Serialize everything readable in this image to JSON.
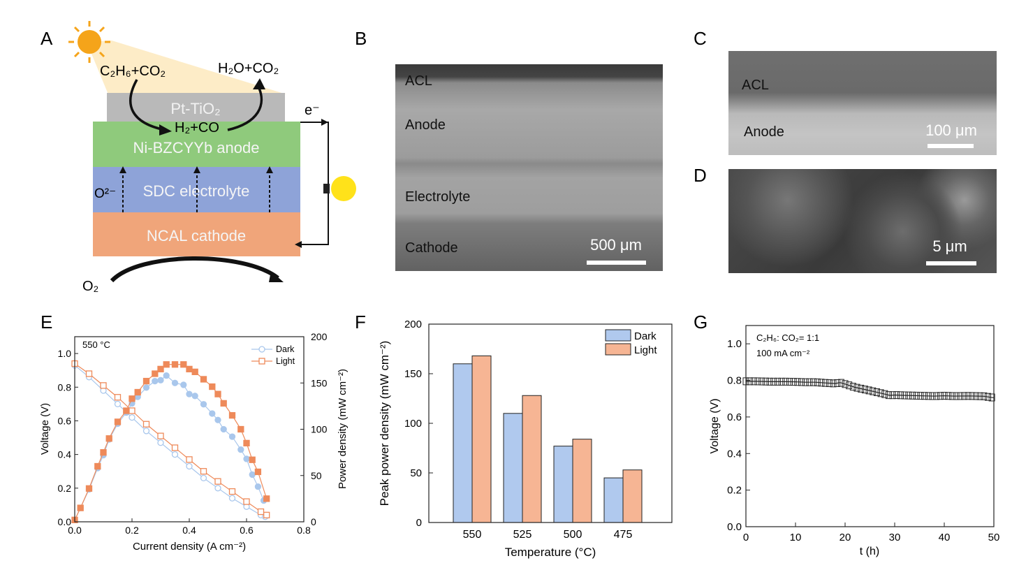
{
  "panels": {
    "A": {
      "letter": "A",
      "feed": "C₂H₆+CO₂",
      "product": "H₂O+CO₂",
      "intermediate": "H₂+CO",
      "catalyst_layer": "Pt-TiO₂",
      "anode": "Ni-BZCYYb anode",
      "electrolyte": "SDC electrolyte",
      "cathode": "NCAL cathode",
      "ion": "O²⁻",
      "electron": "e⁻",
      "oxygen": "O₂",
      "colors": {
        "catalyst": "#b9b9b9",
        "anode": "#8fca7c",
        "electrolyte": "#8ea3d8",
        "cathode": "#f0a57a",
        "sun": "#f5a41a",
        "bulb": "#ffe21a",
        "beam": "#fde9bd"
      }
    },
    "B": {
      "letter": "B",
      "labels": [
        "ACL",
        "Anode",
        "Electrolyte",
        "Cathode"
      ],
      "scale": "500 μm"
    },
    "C": {
      "letter": "C",
      "labels": [
        "ACL",
        "Anode"
      ],
      "scale": "100 μm"
    },
    "D": {
      "letter": "D",
      "scale": "5 μm"
    },
    "E": {
      "letter": "E"
    },
    "F": {
      "letter": "F"
    },
    "G": {
      "letter": "G"
    }
  },
  "chart_data": [
    {
      "panel": "E",
      "type": "line",
      "annotation": "550 °C",
      "xlabel": "Current density (A cm⁻²)",
      "ylabel": "Voltage (V)",
      "y2label": "Power density (mW cm⁻²)",
      "xlim": [
        0,
        0.8
      ],
      "ylim": [
        0,
        1.1
      ],
      "y2lim": [
        0,
        200
      ],
      "xticks": [
        "0.0",
        "0.2",
        "0.4",
        "0.6",
        "0.8"
      ],
      "yticks": [
        "0.0",
        "0.2",
        "0.4",
        "0.6",
        "0.8",
        "1.0"
      ],
      "y2ticks": [
        "0",
        "50",
        "100",
        "150",
        "200"
      ],
      "legend": [
        "Dark",
        "Light"
      ],
      "legend_position": "top-right",
      "colors": {
        "Dark": "#a9c7ec",
        "Light": "#ee8a5a"
      },
      "series": [
        {
          "name": "Dark",
          "quantity": "voltage",
          "x": [
            0,
            0.05,
            0.1,
            0.15,
            0.2,
            0.25,
            0.3,
            0.35,
            0.4,
            0.45,
            0.5,
            0.55,
            0.6,
            0.65,
            0.665
          ],
          "y": [
            0.93,
            0.86,
            0.78,
            0.7,
            0.62,
            0.54,
            0.47,
            0.4,
            0.33,
            0.26,
            0.2,
            0.14,
            0.09,
            0.04,
            0.03
          ]
        },
        {
          "name": "Light",
          "quantity": "voltage",
          "x": [
            0,
            0.05,
            0.1,
            0.15,
            0.2,
            0.25,
            0.3,
            0.35,
            0.4,
            0.45,
            0.5,
            0.55,
            0.6,
            0.65,
            0.67
          ],
          "y": [
            0.94,
            0.88,
            0.81,
            0.74,
            0.66,
            0.58,
            0.51,
            0.44,
            0.37,
            0.3,
            0.24,
            0.18,
            0.12,
            0.06,
            0.04
          ]
        },
        {
          "name": "Dark",
          "quantity": "power",
          "x": [
            0,
            0.02,
            0.05,
            0.08,
            0.1,
            0.12,
            0.15,
            0.18,
            0.2,
            0.22,
            0.25,
            0.28,
            0.3,
            0.32,
            0.35,
            0.38,
            0.4,
            0.42,
            0.45,
            0.48,
            0.5,
            0.52,
            0.55,
            0.58,
            0.6,
            0.62,
            0.64,
            0.66
          ],
          "y": [
            2,
            15,
            35,
            58,
            72,
            89,
            106,
            118,
            128,
            135,
            145,
            152,
            153,
            158,
            150,
            148,
            138,
            136,
            127,
            117,
            110,
            100,
            92,
            78,
            68,
            51,
            38,
            23
          ]
        },
        {
          "name": "Light",
          "quantity": "power",
          "x": [
            0,
            0.02,
            0.05,
            0.08,
            0.1,
            0.12,
            0.15,
            0.18,
            0.2,
            0.22,
            0.25,
            0.28,
            0.3,
            0.32,
            0.35,
            0.38,
            0.4,
            0.42,
            0.45,
            0.48,
            0.5,
            0.52,
            0.55,
            0.58,
            0.6,
            0.62,
            0.64,
            0.67
          ],
          "y": [
            2,
            15,
            36,
            60,
            75,
            90,
            108,
            120,
            133,
            140,
            152,
            160,
            165,
            170,
            170,
            170,
            165,
            162,
            154,
            146,
            138,
            128,
            115,
            100,
            85,
            67,
            54,
            25
          ]
        }
      ]
    },
    {
      "panel": "F",
      "type": "bar",
      "categories": [
        "550",
        "525",
        "500",
        "475"
      ],
      "xlabel": "Temperature (°C)",
      "ylabel": "Peak power density (mW cm⁻²)",
      "ylim": [
        0,
        200
      ],
      "yticks": [
        "0",
        "50",
        "100",
        "150",
        "200"
      ],
      "legend_position": "top-right",
      "colors": {
        "Dark": "#b0c9ee",
        "Light": "#f6b594"
      },
      "series": [
        {
          "name": "Dark",
          "values": [
            160,
            110,
            77,
            45
          ]
        },
        {
          "name": "Light",
          "values": [
            168,
            128,
            84,
            53
          ]
        }
      ]
    },
    {
      "panel": "G",
      "type": "line",
      "annotation_lines": [
        "C₂H₆: CO₂= 1:1",
        "100 mA cm⁻²"
      ],
      "xlabel": "t (h)",
      "ylabel": "Voltage (V)",
      "xlim": [
        0,
        50
      ],
      "ylim": [
        0,
        1.1
      ],
      "xticks": [
        "0",
        "10",
        "20",
        "30",
        "40",
        "50"
      ],
      "yticks": [
        "0.0",
        "0.2",
        "0.4",
        "0.6",
        "0.8",
        "1.0"
      ],
      "series": [
        {
          "x": [
            0,
            2,
            5,
            8,
            10,
            12,
            14,
            16,
            18,
            19,
            20,
            22,
            24,
            26,
            28,
            29,
            30,
            32,
            35,
            38,
            40,
            42,
            45,
            48,
            50
          ],
          "y": [
            0.795,
            0.795,
            0.793,
            0.793,
            0.792,
            0.79,
            0.79,
            0.786,
            0.783,
            0.788,
            0.78,
            0.762,
            0.75,
            0.738,
            0.725,
            0.718,
            0.72,
            0.718,
            0.716,
            0.714,
            0.716,
            0.714,
            0.715,
            0.713,
            0.705
          ]
        }
      ]
    }
  ]
}
